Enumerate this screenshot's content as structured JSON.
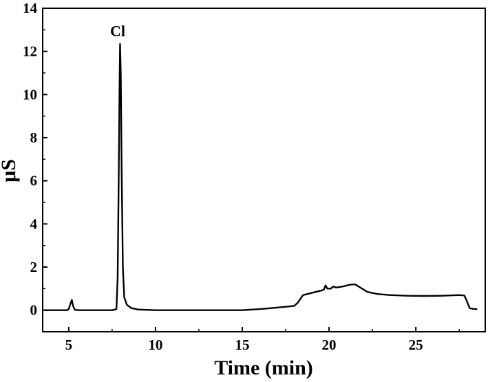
{
  "chart_data": {
    "type": "line",
    "title": "",
    "xlabel": "Time (min)",
    "ylabel": "μS",
    "xlim": [
      3.5,
      29.0
    ],
    "ylim": [
      -1,
      14
    ],
    "x_ticks": [
      5,
      10,
      15,
      20,
      25
    ],
    "x_tick_labels": [
      "5",
      "10",
      "15",
      "20",
      "25"
    ],
    "y_ticks": [
      0,
      2,
      4,
      6,
      8,
      10,
      12,
      14
    ],
    "y_tick_labels": [
      "0",
      "2",
      "4",
      "6",
      "8",
      "10",
      "12",
      "14"
    ],
    "grid": false,
    "legend": "none",
    "annotations": [
      {
        "text": "Cl",
        "x": 7.9,
        "y": 12.35
      }
    ],
    "series": [
      {
        "color": "#000000",
        "points": [
          [
            3.6,
            0.0
          ],
          [
            4.9,
            0.0
          ],
          [
            5.0,
            0.05
          ],
          [
            5.1,
            0.3
          ],
          [
            5.18,
            0.48
          ],
          [
            5.25,
            0.2
          ],
          [
            5.35,
            0.02
          ],
          [
            5.6,
            0.0
          ],
          [
            7.5,
            0.0
          ],
          [
            7.75,
            0.05
          ],
          [
            7.82,
            1.5
          ],
          [
            7.88,
            6.0
          ],
          [
            7.93,
            10.5
          ],
          [
            7.96,
            12.35
          ],
          [
            8.0,
            11.0
          ],
          [
            8.05,
            6.5
          ],
          [
            8.12,
            2.0
          ],
          [
            8.2,
            0.6
          ],
          [
            8.35,
            0.25
          ],
          [
            8.6,
            0.1
          ],
          [
            9.0,
            0.03
          ],
          [
            10.0,
            0.0
          ],
          [
            12.0,
            0.0
          ],
          [
            15.0,
            0.0
          ],
          [
            16.0,
            0.05
          ],
          [
            17.0,
            0.12
          ],
          [
            18.0,
            0.2
          ],
          [
            18.2,
            0.35
          ],
          [
            18.5,
            0.7
          ],
          [
            19.0,
            0.8
          ],
          [
            19.5,
            0.9
          ],
          [
            19.7,
            0.95
          ],
          [
            19.8,
            1.15
          ],
          [
            19.9,
            1.0
          ],
          [
            20.1,
            1.0
          ],
          [
            20.25,
            1.1
          ],
          [
            20.4,
            1.05
          ],
          [
            20.8,
            1.1
          ],
          [
            21.2,
            1.18
          ],
          [
            21.5,
            1.2
          ],
          [
            21.8,
            1.05
          ],
          [
            22.2,
            0.85
          ],
          [
            22.8,
            0.75
          ],
          [
            23.5,
            0.7
          ],
          [
            24.5,
            0.67
          ],
          [
            25.5,
            0.66
          ],
          [
            26.5,
            0.67
          ],
          [
            27.5,
            0.7
          ],
          [
            27.8,
            0.68
          ],
          [
            27.95,
            0.4
          ],
          [
            28.1,
            0.1
          ],
          [
            28.3,
            0.06
          ],
          [
            28.5,
            0.05
          ]
        ]
      }
    ]
  }
}
